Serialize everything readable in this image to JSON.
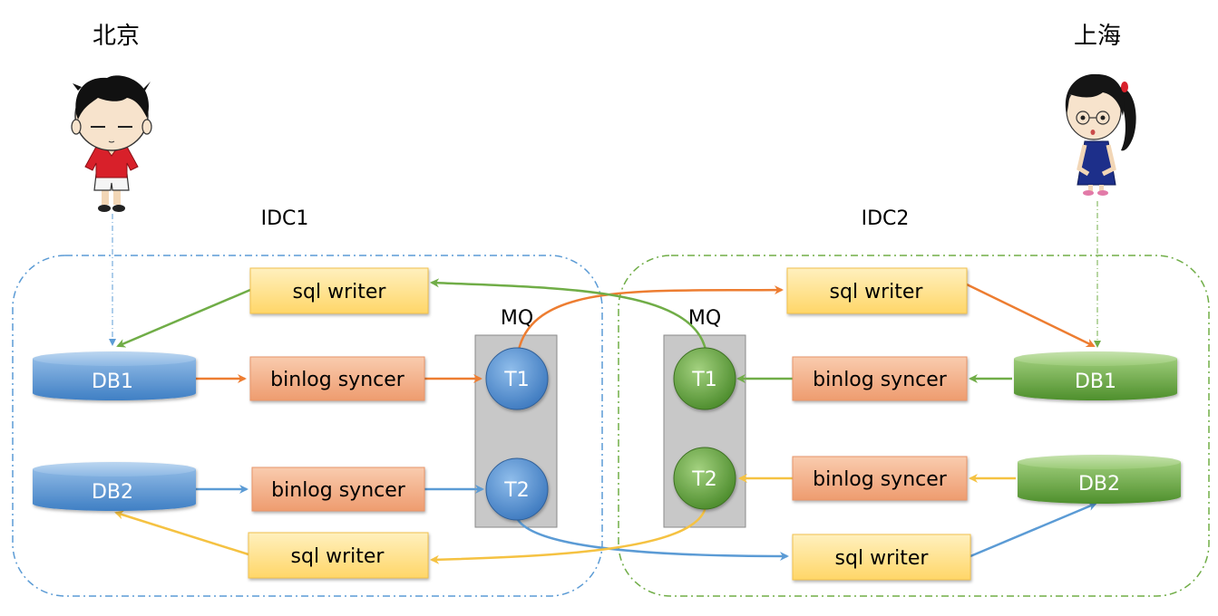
{
  "cities": {
    "beijing": "北京",
    "shanghai": "上海"
  },
  "idc": {
    "left": "IDC1",
    "right": "IDC2"
  },
  "mq": {
    "left": "MQ",
    "right": "MQ"
  },
  "topics": {
    "t1": "T1",
    "t2": "T2"
  },
  "databases": {
    "db1": "DB1",
    "db2": "DB2"
  },
  "components": {
    "sql_writer": "sql writer",
    "binlog_syncer": "binlog syncer"
  },
  "colors": {
    "idc1_border": "#5B9BD5",
    "idc2_border": "#70AD47",
    "db_blue": "#5B9BD5",
    "db_green": "#70AD47",
    "sql_writer_fill": "#FFE699",
    "binlog_syncer_fill": "#F4B183",
    "mq_fill": "#C8C8C8",
    "arrow_orange": "#ED7D31",
    "arrow_green": "#70AD47",
    "arrow_blue": "#5B9BD5",
    "arrow_yellow": "#F5C242"
  }
}
